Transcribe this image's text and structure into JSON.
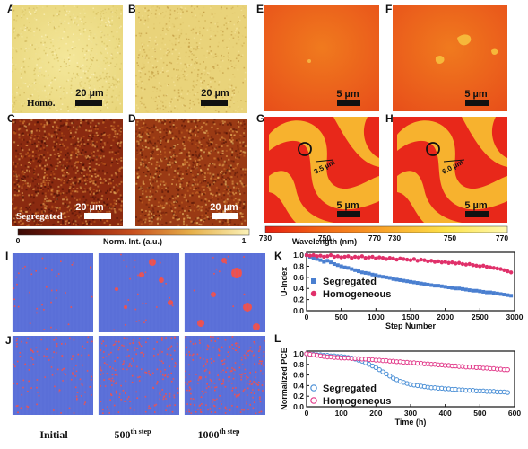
{
  "panel_labels": {
    "A": "A",
    "B": "B",
    "C": "C",
    "D": "D",
    "E": "E",
    "F": "F",
    "G": "G",
    "H": "H",
    "I": "I",
    "J": "J",
    "K": "K",
    "L": "L"
  },
  "images": {
    "A": {
      "tag": "Homo.",
      "scalebar": "20 µm"
    },
    "B": {
      "scalebar": "20 µm"
    },
    "C": {
      "tag": "Segregated",
      "scalebar": "20 µm"
    },
    "D": {
      "scalebar": "20 µm"
    },
    "E": {
      "scalebar": "5 µm"
    },
    "F": {
      "scalebar": "5 µm"
    },
    "G": {
      "scalebar": "5 µm",
      "measure": "3.5 µm"
    },
    "H": {
      "scalebar": "5 µm",
      "measure": "6.0 µm"
    }
  },
  "colorbars": {
    "intensity": {
      "min": "0",
      "max": "1",
      "label": "Norm. Int. (a.u.)",
      "colors": [
        "#3a0a05",
        "#8b1d0c",
        "#c8501e",
        "#e6b04a",
        "#fbf2b8"
      ]
    },
    "wavelength": {
      "min": "730",
      "mid": "750",
      "max": "770",
      "label": "Wavelength (nm)",
      "colors": [
        "#e61e10",
        "#f26a16",
        "#f9a62a",
        "#fde34a",
        "#fff9b0"
      ]
    }
  },
  "simulation": {
    "captions": [
      "Initial",
      "500",
      "1000"
    ],
    "caption_suffix": [
      "",
      "th step",
      "th step"
    ],
    "colors": {
      "background": "#5a6fd8",
      "phase": "#f0504c"
    }
  },
  "chart_data": [
    {
      "type": "scatter",
      "panel": "K",
      "xlabel": "Step Number",
      "ylabel": "U-Index",
      "xlim": [
        0,
        3000
      ],
      "ylim": [
        0,
        1.05
      ],
      "xticks": [
        0,
        500,
        1000,
        1500,
        2000,
        2500,
        3000
      ],
      "yticks": [
        0.0,
        0.2,
        0.4,
        0.6,
        0.8,
        1.0
      ],
      "legend_position": "center-left",
      "series": [
        {
          "name": "Segregated",
          "color": "#4a7fd0",
          "marker": "square",
          "x": [
            0,
            50,
            100,
            150,
            200,
            250,
            300,
            350,
            400,
            450,
            500,
            550,
            600,
            650,
            700,
            750,
            800,
            850,
            900,
            950,
            1000,
            1050,
            1100,
            1150,
            1200,
            1250,
            1300,
            1350,
            1400,
            1450,
            1500,
            1550,
            1600,
            1650,
            1700,
            1750,
            1800,
            1850,
            1900,
            1950,
            2000,
            2050,
            2100,
            2150,
            2200,
            2250,
            2300,
            2350,
            2400,
            2450,
            2500,
            2550,
            2600,
            2650,
            2700,
            2750,
            2800,
            2850,
            2900,
            2950
          ],
          "y": [
            1.0,
            0.97,
            0.95,
            0.93,
            0.91,
            0.88,
            0.9,
            0.87,
            0.84,
            0.82,
            0.8,
            0.78,
            0.77,
            0.75,
            0.73,
            0.71,
            0.69,
            0.68,
            0.67,
            0.65,
            0.64,
            0.62,
            0.61,
            0.6,
            0.59,
            0.57,
            0.56,
            0.55,
            0.54,
            0.53,
            0.52,
            0.51,
            0.5,
            0.49,
            0.48,
            0.47,
            0.46,
            0.45,
            0.45,
            0.44,
            0.43,
            0.42,
            0.41,
            0.4,
            0.4,
            0.39,
            0.38,
            0.37,
            0.36,
            0.36,
            0.35,
            0.34,
            0.33,
            0.33,
            0.32,
            0.31,
            0.3,
            0.29,
            0.28,
            0.27
          ]
        },
        {
          "name": "Homogeneous",
          "color": "#e0306a",
          "marker": "circle",
          "x": [
            0,
            50,
            100,
            150,
            200,
            250,
            300,
            350,
            400,
            450,
            500,
            550,
            600,
            650,
            700,
            750,
            800,
            850,
            900,
            950,
            1000,
            1050,
            1100,
            1150,
            1200,
            1250,
            1300,
            1350,
            1400,
            1450,
            1500,
            1550,
            1600,
            1650,
            1700,
            1750,
            1800,
            1850,
            1900,
            1950,
            2000,
            2050,
            2100,
            2150,
            2200,
            2250,
            2300,
            2350,
            2400,
            2450,
            2500,
            2550,
            2600,
            2650,
            2700,
            2750,
            2800,
            2850,
            2900,
            2950
          ],
          "y": [
            1.0,
            0.99,
            1.0,
            0.98,
            0.99,
            0.97,
            0.98,
            1.0,
            0.97,
            0.98,
            0.96,
            0.97,
            0.98,
            0.95,
            0.97,
            0.96,
            0.98,
            0.95,
            0.96,
            0.97,
            0.94,
            0.96,
            0.95,
            0.93,
            0.95,
            0.94,
            0.92,
            0.94,
            0.93,
            0.92,
            0.91,
            0.93,
            0.9,
            0.92,
            0.91,
            0.89,
            0.9,
            0.88,
            0.89,
            0.87,
            0.88,
            0.86,
            0.87,
            0.85,
            0.86,
            0.84,
            0.83,
            0.84,
            0.82,
            0.81,
            0.8,
            0.81,
            0.79,
            0.78,
            0.77,
            0.76,
            0.75,
            0.73,
            0.71,
            0.69
          ]
        }
      ]
    },
    {
      "type": "scatter",
      "panel": "L",
      "xlabel": "Time (h)",
      "ylabel": "Normalized PCE",
      "xlim": [
        0,
        600
      ],
      "ylim": [
        0,
        1.05
      ],
      "xticks": [
        0,
        100,
        200,
        300,
        400,
        500,
        600
      ],
      "yticks": [
        0.0,
        0.2,
        0.4,
        0.6,
        0.8,
        1.0
      ],
      "legend_position": "bottom-left",
      "series": [
        {
          "name": "Segregated",
          "color": "#4a8fd6",
          "marker": "circle-open",
          "x": [
            0,
            10,
            20,
            30,
            40,
            50,
            60,
            70,
            80,
            90,
            100,
            110,
            120,
            130,
            140,
            150,
            160,
            170,
            180,
            190,
            200,
            210,
            220,
            230,
            240,
            250,
            260,
            270,
            280,
            290,
            300,
            310,
            320,
            330,
            340,
            350,
            360,
            370,
            380,
            390,
            400,
            410,
            420,
            430,
            440,
            450,
            460,
            470,
            480,
            490,
            500,
            510,
            520,
            530,
            540,
            550,
            560,
            570,
            580
          ],
          "y": [
            1.0,
            0.99,
            0.99,
            0.98,
            0.98,
            0.97,
            0.97,
            0.96,
            0.96,
            0.95,
            0.95,
            0.94,
            0.93,
            0.92,
            0.9,
            0.88,
            0.86,
            0.83,
            0.8,
            0.77,
            0.74,
            0.7,
            0.66,
            0.62,
            0.58,
            0.54,
            0.51,
            0.48,
            0.46,
            0.44,
            0.42,
            0.41,
            0.4,
            0.39,
            0.38,
            0.37,
            0.36,
            0.36,
            0.35,
            0.35,
            0.34,
            0.34,
            0.33,
            0.33,
            0.32,
            0.32,
            0.31,
            0.31,
            0.31,
            0.3,
            0.3,
            0.3,
            0.29,
            0.29,
            0.29,
            0.28,
            0.28,
            0.28,
            0.27
          ]
        },
        {
          "name": "Homogeneous",
          "color": "#e23a8a",
          "marker": "circle-open",
          "x": [
            0,
            10,
            20,
            30,
            40,
            50,
            60,
            70,
            80,
            90,
            100,
            110,
            120,
            130,
            140,
            150,
            160,
            170,
            180,
            190,
            200,
            210,
            220,
            230,
            240,
            250,
            260,
            270,
            280,
            290,
            300,
            310,
            320,
            330,
            340,
            350,
            360,
            370,
            380,
            390,
            400,
            410,
            420,
            430,
            440,
            450,
            460,
            470,
            480,
            490,
            500,
            510,
            520,
            530,
            540,
            550,
            560,
            570,
            580
          ],
          "y": [
            1.0,
            0.99,
            0.98,
            0.97,
            0.96,
            0.95,
            0.94,
            0.94,
            0.93,
            0.93,
            0.92,
            0.92,
            0.92,
            0.91,
            0.91,
            0.91,
            0.9,
            0.9,
            0.89,
            0.89,
            0.88,
            0.88,
            0.87,
            0.87,
            0.86,
            0.86,
            0.85,
            0.85,
            0.84,
            0.84,
            0.83,
            0.83,
            0.82,
            0.82,
            0.81,
            0.81,
            0.8,
            0.8,
            0.79,
            0.79,
            0.78,
            0.78,
            0.77,
            0.77,
            0.76,
            0.76,
            0.75,
            0.75,
            0.75,
            0.74,
            0.74,
            0.73,
            0.73,
            0.72,
            0.72,
            0.71,
            0.71,
            0.7,
            0.7
          ]
        }
      ]
    }
  ]
}
